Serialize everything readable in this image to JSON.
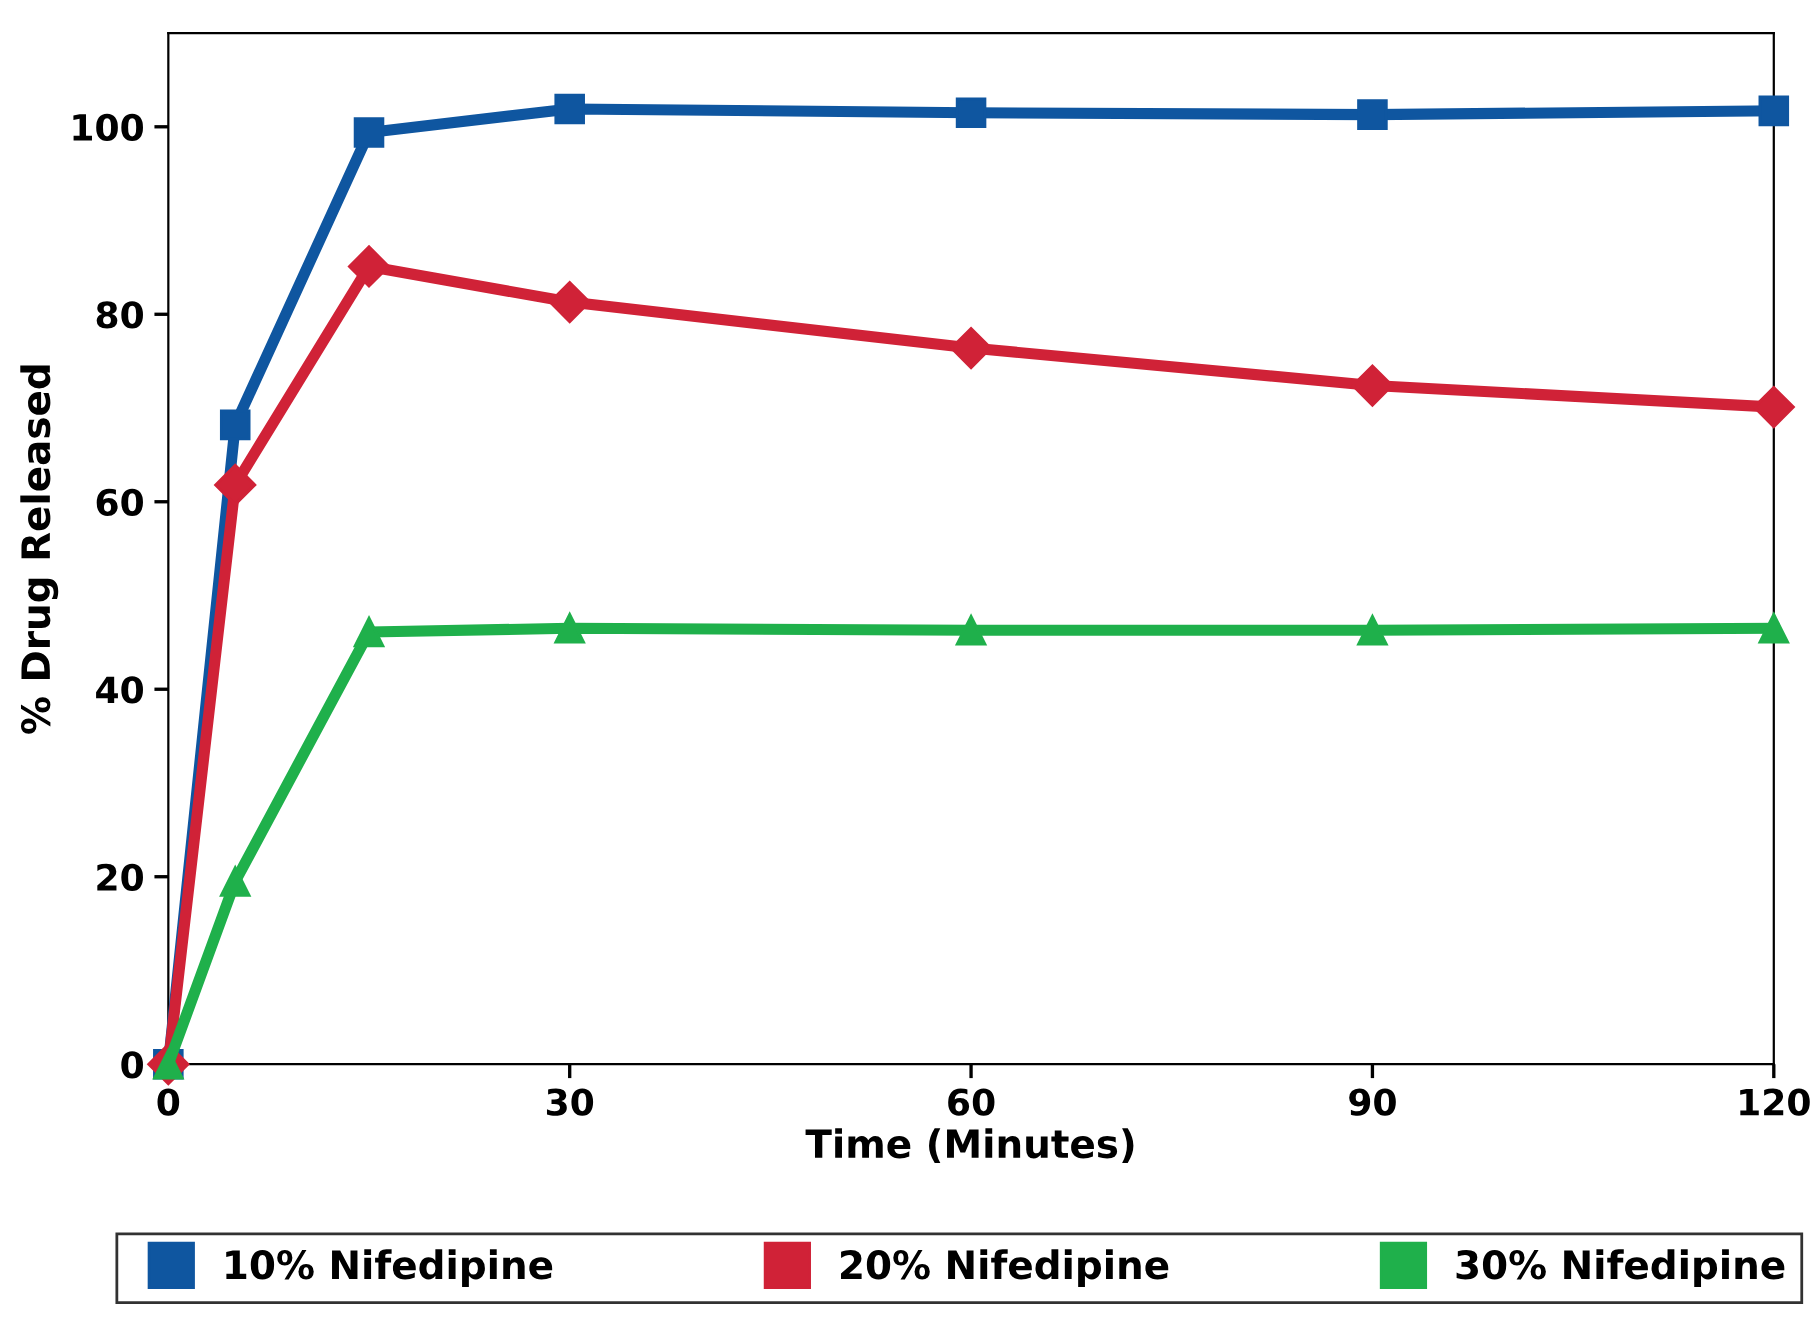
{
  "chart_data": {
    "type": "line",
    "xlabel": "Time (Minutes)",
    "ylabel": "% Drug Released",
    "x": [
      0,
      5,
      15,
      30,
      60,
      90,
      120
    ],
    "series": [
      {
        "name": "10% Nifedipine",
        "color": "#0f56a0",
        "marker": "square",
        "values": [
          0,
          68.2,
          99.4,
          101.9,
          101.5,
          101.3,
          101.7
        ]
      },
      {
        "name": "20% Nifedipine",
        "color": "#d02237",
        "marker": "diamond",
        "values": [
          0,
          61.8,
          85.1,
          81.3,
          76.4,
          72.4,
          70.1
        ]
      },
      {
        "name": "30% Nifedipine",
        "color": "#1fb04b",
        "marker": "triangle",
        "values": [
          0,
          19.5,
          46.1,
          46.5,
          46.3,
          46.3,
          46.5
        ]
      }
    ],
    "xlim": [
      0,
      120
    ],
    "xticks": [
      0,
      30,
      60,
      90,
      120
    ],
    "ylim": [
      0,
      110
    ],
    "yticks": [
      0,
      20,
      40,
      60,
      80,
      100
    ],
    "grid": false,
    "legend": "bottom",
    "line_style": "solid"
  }
}
